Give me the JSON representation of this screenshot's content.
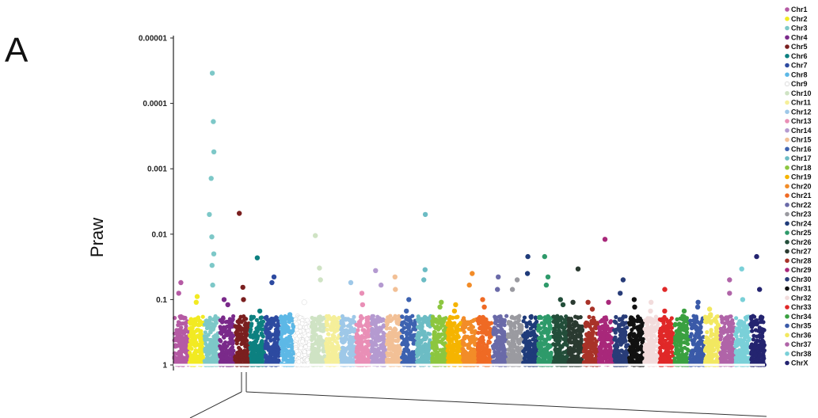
{
  "panel_label": "A",
  "chart_data": {
    "type": "scatter",
    "title": "",
    "xlabel": "",
    "ylabel": "Praw",
    "y_scale": "log-reversed",
    "yticks": [
      {
        "value": 1e-05,
        "label": "0.00001"
      },
      {
        "value": 0.0001,
        "label": "0.0001"
      },
      {
        "value": 0.001,
        "label": "0.001"
      },
      {
        "value": 0.01,
        "label": "0.01"
      },
      {
        "value": 0.1,
        "label": "0.1"
      },
      {
        "value": 1,
        "label": "1"
      }
    ],
    "ylim": [
      1,
      1e-05
    ],
    "legend_position": "right",
    "series": [
      {
        "name": "Chr1",
        "color": "#b55aa4",
        "top_points": [
          0.055,
          0.08
        ]
      },
      {
        "name": "Chr2",
        "color": "#f2ea22",
        "top_points": [
          0.09,
          0.11
        ]
      },
      {
        "name": "Chr3",
        "color": "#7dc8c8",
        "top_points": [
          3.45e-05,
          0.00019,
          0.00055,
          0.0014,
          0.005,
          0.011,
          0.02,
          0.03,
          0.06
        ]
      },
      {
        "name": "Chr4",
        "color": "#7a2a8a",
        "top_points": [
          0.1,
          0.12
        ]
      },
      {
        "name": "Chr5",
        "color": "#7a1f1f",
        "top_points": [
          0.0048,
          0.065,
          0.1
        ]
      },
      {
        "name": "Chr6",
        "color": "#0d8080",
        "top_points": [
          0.023,
          0.15
        ]
      },
      {
        "name": "Chr7",
        "color": "#2d4aa0",
        "top_points": [
          0.045,
          0.055
        ]
      },
      {
        "name": "Chr8",
        "color": "#5db8e6",
        "top_points": [
          0.17,
          0.2
        ]
      },
      {
        "name": "Chr9",
        "color": "#ffffff",
        "top_points": [
          0.11
        ]
      },
      {
        "name": "Chr10",
        "color": "#cfe3c4",
        "top_points": [
          0.0105,
          0.033,
          0.05
        ]
      },
      {
        "name": "Chr11",
        "color": "#f5ef9a",
        "top_points": [
          0.2
        ]
      },
      {
        "name": "Chr12",
        "color": "#9ec8e8",
        "top_points": [
          0.055,
          0.2
        ]
      },
      {
        "name": "Chr13",
        "color": "#e98fb6",
        "top_points": [
          0.08,
          0.12
        ]
      },
      {
        "name": "Chr14",
        "color": "#b49ad0",
        "top_points": [
          0.036,
          0.06
        ]
      },
      {
        "name": "Chr15",
        "color": "#f2c096",
        "top_points": [
          0.045,
          0.07
        ]
      },
      {
        "name": "Chr16",
        "color": "#3d62b0",
        "top_points": [
          0.1,
          0.15
        ]
      },
      {
        "name": "Chr17",
        "color": "#6cbcc4",
        "top_points": [
          0.005,
          0.035,
          0.05
        ]
      },
      {
        "name": "Chr18",
        "color": "#8cc63f",
        "top_points": [
          0.11,
          0.13
        ]
      },
      {
        "name": "Chr19",
        "color": "#f5b400",
        "top_points": [
          0.12,
          0.15
        ]
      },
      {
        "name": "Chr20",
        "color": "#f28c28",
        "top_points": [
          0.04,
          0.06
        ]
      },
      {
        "name": "Chr21",
        "color": "#ef6a24",
        "top_points": [
          0.1,
          0.13
        ]
      },
      {
        "name": "Chr22",
        "color": "#6a6aa8",
        "top_points": [
          0.045,
          0.07
        ]
      },
      {
        "name": "Chr23",
        "color": "#9a9aa0",
        "top_points": [
          0.05,
          0.07
        ]
      },
      {
        "name": "Chr24",
        "color": "#1f3b7a",
        "top_points": [
          0.022,
          0.04
        ]
      },
      {
        "name": "Chr25",
        "color": "#2e9a6a",
        "top_points": [
          0.022,
          0.045,
          0.06
        ]
      },
      {
        "name": "Chr26",
        "color": "#234e3a",
        "top_points": [
          0.1,
          0.12
        ]
      },
      {
        "name": "Chr27",
        "color": "#2a3a30",
        "top_points": [
          0.034,
          0.11
        ]
      },
      {
        "name": "Chr28",
        "color": "#a83228",
        "top_points": [
          0.11,
          0.14
        ]
      },
      {
        "name": "Chr29",
        "color": "#a8287a",
        "top_points": [
          0.012,
          0.11
        ]
      },
      {
        "name": "Chr30",
        "color": "#283c78",
        "top_points": [
          0.05,
          0.08
        ]
      },
      {
        "name": "Chr31",
        "color": "#111111",
        "top_points": [
          0.1,
          0.13
        ]
      },
      {
        "name": "Chr32",
        "color": "#f2dcdc",
        "top_points": [
          0.11,
          0.15
        ]
      },
      {
        "name": "Chr33",
        "color": "#e02828",
        "top_points": [
          0.07,
          0.15
        ]
      },
      {
        "name": "Chr34",
        "color": "#3aa040",
        "top_points": [
          0.15,
          0.18
        ]
      },
      {
        "name": "Chr35",
        "color": "#3a5aa8",
        "top_points": [
          0.11,
          0.13
        ]
      },
      {
        "name": "Chr36",
        "color": "#f2e860",
        "top_points": [
          0.14,
          0.17
        ]
      },
      {
        "name": "Chr37",
        "color": "#b064a8",
        "top_points": [
          0.05,
          0.08
        ]
      },
      {
        "name": "Chr38",
        "color": "#7ad0d8",
        "top_points": [
          0.034,
          0.1
        ]
      },
      {
        "name": "ChrX",
        "color": "#242470",
        "top_points": [
          0.022,
          0.07
        ]
      }
    ]
  }
}
